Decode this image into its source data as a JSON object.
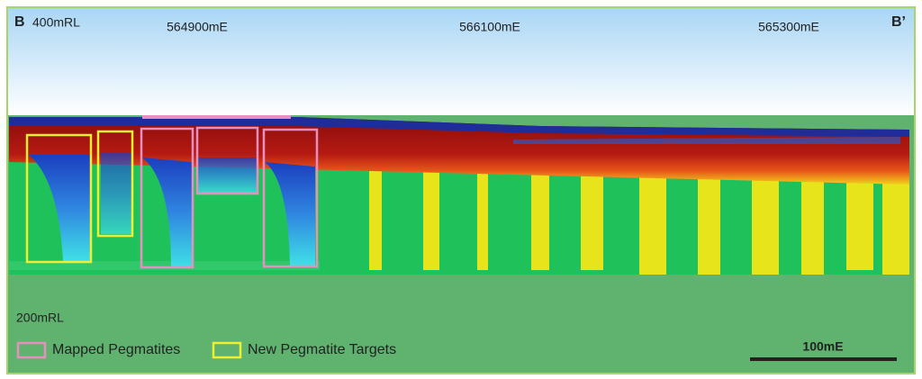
{
  "section": {
    "start_label": "B",
    "end_label": "B’"
  },
  "elevations": [
    "400mRL",
    "200mRL"
  ],
  "eastings": [
    "564900mE",
    "566100mE",
    "565300mE"
  ],
  "legend": [
    "Mapped Pegmatites",
    "New Pegmatite Targets"
  ],
  "scale_bar": "100mE"
}
